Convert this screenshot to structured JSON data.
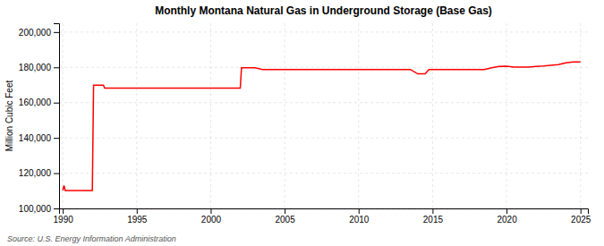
{
  "chart_data": {
    "type": "line",
    "title": "Monthly Montana Natural Gas in Underground Storage (Base Gas)",
    "ylabel": "Million Cubic Feet",
    "source": "Source: U.S. Energy Information Administration",
    "xlim": [
      1989.75,
      2025.5
    ],
    "ylim": [
      100000,
      205000
    ],
    "xticks": [
      1990,
      1995,
      2000,
      2005,
      2010,
      2015,
      2020,
      2025
    ],
    "yticks": [
      {
        "value": 100000,
        "label": "100,000"
      },
      {
        "value": 120000,
        "label": "120,000"
      },
      {
        "value": 140000,
        "label": "140,000"
      },
      {
        "value": 160000,
        "label": "160,000"
      },
      {
        "value": 180000,
        "label": "180,000"
      },
      {
        "value": 200000,
        "label": "200,000"
      }
    ],
    "grid": true,
    "x": [
      1990.0,
      1990.083,
      1990.167,
      1990.25,
      1990.333,
      1990.417,
      1990.5,
      1990.583,
      1990.667,
      1990.75,
      1990.833,
      1990.917,
      1991.0,
      1991.083,
      1991.167,
      1991.25,
      1991.333,
      1991.417,
      1991.5,
      1991.583,
      1991.667,
      1991.75,
      1991.833,
      1991.917,
      1992.0,
      1992.083,
      1992.167,
      1992.25,
      1992.333,
      1992.417,
      1992.5,
      1992.583,
      1992.667,
      1992.75,
      1992.833,
      1992.917,
      1993.0,
      1993.083,
      1993.167,
      1993.25,
      1993.333,
      1993.417,
      1993.5,
      1993.667,
      1993.75,
      1993.833,
      1993.917,
      1994.0,
      1995.0,
      1996.0,
      1997.0,
      1998.0,
      1999.0,
      2000.0,
      2001.0,
      2002.0,
      2002.083,
      2002.167,
      2002.25,
      2002.333,
      2002.417,
      2002.5,
      2003.0,
      2003.5,
      2004.0,
      2005.0,
      2006.0,
      2007.0,
      2008.0,
      2009.0,
      2010.0,
      2011.0,
      2012.0,
      2013.0,
      2013.5,
      2014.0,
      2014.5,
      2014.75,
      2015.0,
      2016.0,
      2017.0,
      2018.0,
      2018.5,
      2019.0,
      2019.5,
      2020.0,
      2020.5,
      2021.0,
      2021.5,
      2022.0,
      2022.5,
      2023.0,
      2023.5,
      2024.0,
      2024.5,
      2025.0
    ],
    "series": [
      {
        "color": "#ff0000",
        "values": [
          110200,
          113000,
          110200,
          110200,
          110200,
          110200,
          110200,
          110200,
          110200,
          110200,
          110200,
          110200,
          110200,
          110200,
          110200,
          110200,
          110200,
          110200,
          110200,
          110200,
          110200,
          110200,
          110200,
          110200,
          110200,
          169900,
          169900,
          169900,
          169900,
          169900,
          169900,
          169900,
          169900,
          169900,
          168200,
          168200,
          168200,
          168200,
          168200,
          168200,
          168200,
          168200,
          168200,
          168200,
          168200,
          168200,
          168200,
          168200,
          168200,
          168200,
          168200,
          168200,
          168200,
          168200,
          168200,
          168200,
          179800,
          179800,
          179800,
          179800,
          179800,
          179800,
          179800,
          178800,
          178800,
          178800,
          178800,
          178800,
          178800,
          178800,
          178800,
          178800,
          178800,
          178800,
          178800,
          176300,
          176300,
          178800,
          178800,
          178800,
          178800,
          178800,
          178800,
          179800,
          180500,
          180700,
          180200,
          180200,
          180200,
          180500,
          180800,
          181200,
          181500,
          182500,
          183000,
          183000
        ]
      }
    ]
  }
}
